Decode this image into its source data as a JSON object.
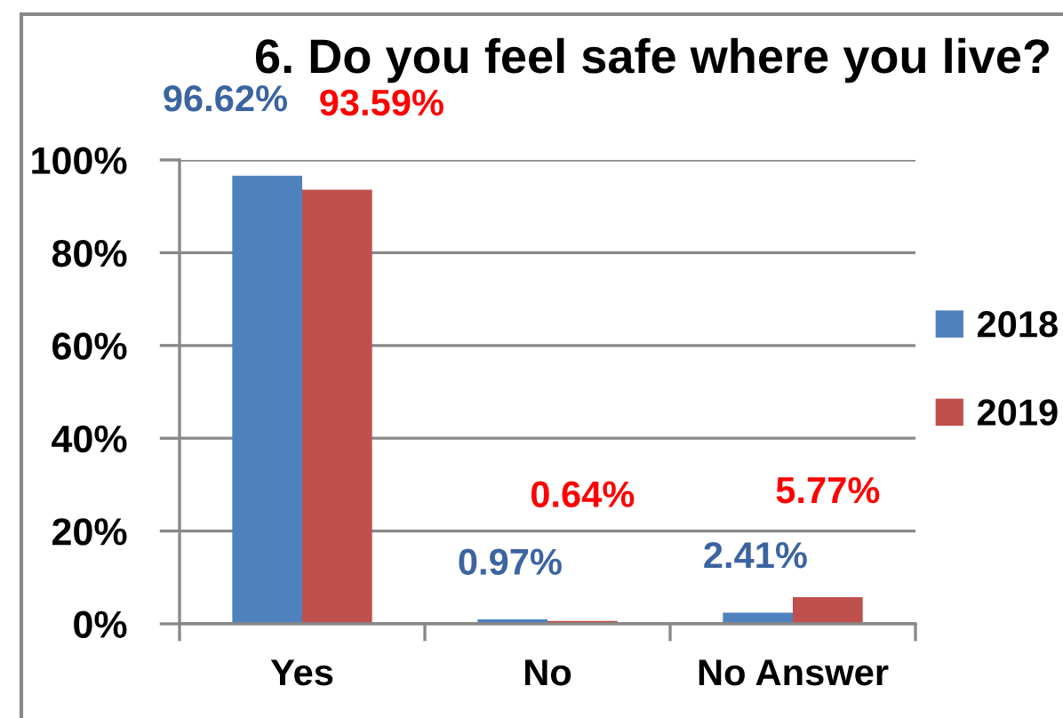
{
  "chart_data": {
    "type": "bar",
    "title": "6. Do you feel safe where you live?",
    "categories": [
      "Yes",
      "No",
      "No Answer"
    ],
    "series": [
      {
        "name": "2018",
        "color": "#4f81bd",
        "values": [
          96.62,
          0.97,
          2.41
        ],
        "value_labels": [
          "96.62%",
          "0.97%",
          "2.41%"
        ]
      },
      {
        "name": "2019",
        "color": "#c0504d",
        "values": [
          93.59,
          0.64,
          5.77
        ],
        "value_labels": [
          "93.59%",
          "0.64%",
          "5.77%"
        ]
      }
    ],
    "ylim": [
      0,
      100
    ],
    "yticks": [
      {
        "value": 0,
        "label": "0%"
      },
      {
        "value": 20,
        "label": "20%"
      },
      {
        "value": 40,
        "label": "40%"
      },
      {
        "value": 60,
        "label": "60%"
      },
      {
        "value": 80,
        "label": "80%"
      },
      {
        "value": 100,
        "label": "100%"
      }
    ],
    "grid": "y",
    "legend": "right"
  }
}
